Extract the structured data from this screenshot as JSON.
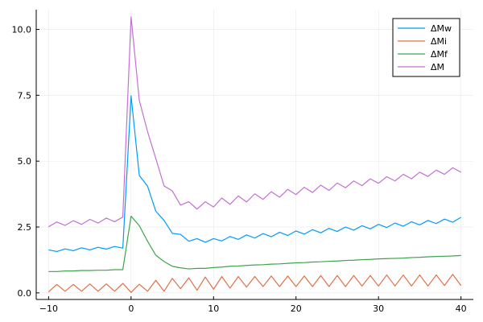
{
  "chart_data": {
    "type": "line",
    "title": "",
    "xlabel": "",
    "ylabel": "",
    "xlim": [
      -11.5,
      41.5
    ],
    "ylim": [
      -0.25,
      10.75
    ],
    "xticks": [
      -10,
      0,
      10,
      20,
      30,
      40
    ],
    "yticks": [
      0,
      2.5,
      5,
      7.5,
      10
    ],
    "xtick_labels": [
      "−10",
      "0",
      "10",
      "20",
      "30",
      "40"
    ],
    "ytick_labels": [
      "0.0",
      "2.5",
      "5.0",
      "7.5",
      "10.0"
    ],
    "grid": true,
    "legend_position": "top-right",
    "x": [
      -10,
      -9,
      -8,
      -7,
      -6,
      -5,
      -4,
      -3,
      -2,
      -1,
      0,
      1,
      2,
      3,
      4,
      5,
      6,
      7,
      8,
      9,
      10,
      11,
      12,
      13,
      14,
      15,
      16,
      17,
      18,
      19,
      20,
      21,
      22,
      23,
      24,
      25,
      26,
      27,
      28,
      29,
      30,
      31,
      32,
      33,
      34,
      35,
      36,
      37,
      38,
      39,
      40
    ],
    "series": [
      {
        "name": "ΔMw",
        "color": "#009AFA",
        "values": [
          1.63,
          1.57,
          1.67,
          1.6,
          1.71,
          1.63,
          1.73,
          1.66,
          1.76,
          1.7,
          7.48,
          4.45,
          4.05,
          3.1,
          2.75,
          2.26,
          2.22,
          1.96,
          2.06,
          1.92,
          2.06,
          1.97,
          2.14,
          2.03,
          2.2,
          2.08,
          2.25,
          2.13,
          2.3,
          2.18,
          2.35,
          2.23,
          2.4,
          2.28,
          2.45,
          2.33,
          2.5,
          2.38,
          2.55,
          2.43,
          2.6,
          2.48,
          2.65,
          2.53,
          2.7,
          2.58,
          2.75,
          2.63,
          2.8,
          2.68,
          2.87
        ]
      },
      {
        "name": "ΔMi",
        "color": "#E26F46",
        "values": [
          0.04,
          0.32,
          0.06,
          0.32,
          0.06,
          0.34,
          0.06,
          0.34,
          0.06,
          0.36,
          0.02,
          0.33,
          0.06,
          0.48,
          0.06,
          0.55,
          0.16,
          0.57,
          0.1,
          0.6,
          0.14,
          0.62,
          0.18,
          0.62,
          0.22,
          0.62,
          0.24,
          0.64,
          0.24,
          0.64,
          0.24,
          0.64,
          0.24,
          0.66,
          0.24,
          0.66,
          0.24,
          0.66,
          0.26,
          0.66,
          0.26,
          0.68,
          0.26,
          0.68,
          0.26,
          0.68,
          0.26,
          0.68,
          0.28,
          0.7,
          0.28
        ]
      },
      {
        "name": "ΔMf",
        "color": "#3DA44D",
        "values": [
          0.81,
          0.81,
          0.83,
          0.83,
          0.85,
          0.85,
          0.86,
          0.86,
          0.88,
          0.88,
          2.91,
          2.55,
          1.96,
          1.43,
          1.19,
          1.01,
          0.95,
          0.91,
          0.93,
          0.93,
          0.96,
          0.98,
          1.01,
          1.02,
          1.04,
          1.06,
          1.07,
          1.09,
          1.1,
          1.12,
          1.14,
          1.15,
          1.17,
          1.18,
          1.2,
          1.21,
          1.23,
          1.24,
          1.26,
          1.27,
          1.29,
          1.3,
          1.31,
          1.32,
          1.34,
          1.35,
          1.37,
          1.38,
          1.39,
          1.4,
          1.42
        ]
      },
      {
        "name": "ΔM",
        "color": "#C271D2",
        "values": [
          2.51,
          2.69,
          2.56,
          2.74,
          2.6,
          2.79,
          2.65,
          2.84,
          2.7,
          2.88,
          10.48,
          7.3,
          6.12,
          5.1,
          4.06,
          3.87,
          3.33,
          3.46,
          3.18,
          3.46,
          3.26,
          3.6,
          3.36,
          3.68,
          3.45,
          3.76,
          3.55,
          3.84,
          3.63,
          3.93,
          3.73,
          4.01,
          3.81,
          4.09,
          3.89,
          4.17,
          3.99,
          4.25,
          4.07,
          4.33,
          4.16,
          4.41,
          4.25,
          4.5,
          4.33,
          4.58,
          4.42,
          4.66,
          4.5,
          4.75,
          4.58
        ]
      }
    ]
  }
}
